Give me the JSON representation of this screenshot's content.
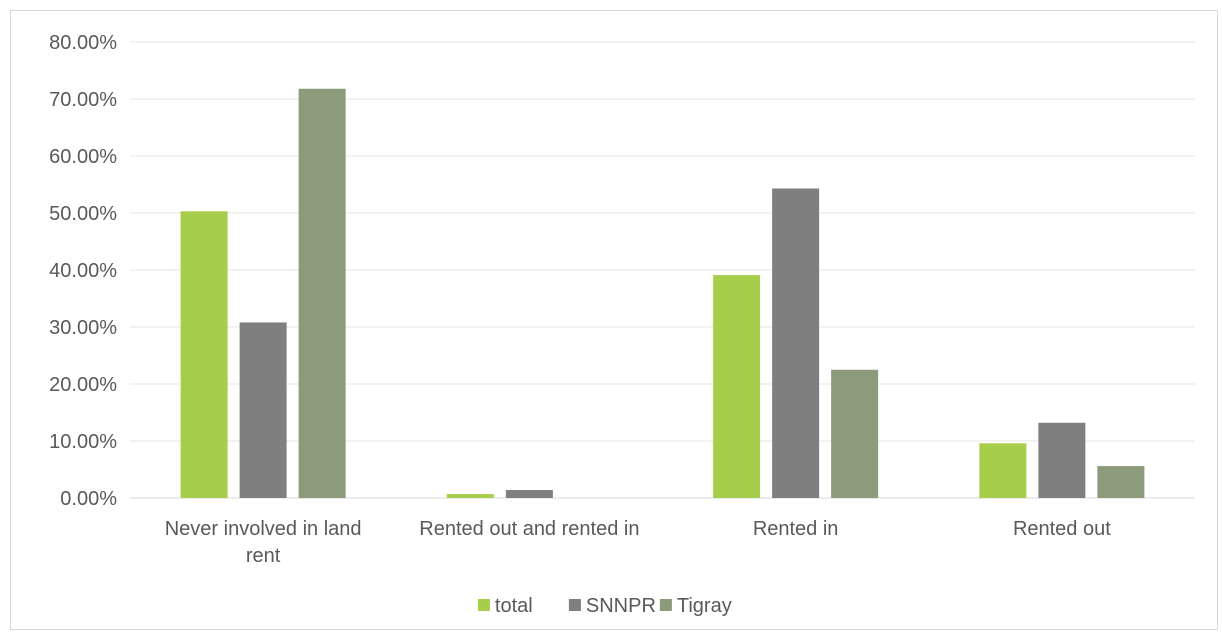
{
  "chart_data": {
    "type": "bar",
    "categories": [
      [
        "Never involved in land",
        "rent"
      ],
      [
        "Rented out and rented in"
      ],
      [
        "Rented in"
      ],
      [
        "Rented out"
      ]
    ],
    "series": [
      {
        "name": "total",
        "color": "#a6ce4a",
        "values": [
          50.3,
          0.7,
          39.1,
          9.6
        ]
      },
      {
        "name": "SNNPR",
        "color": "#7f7f7f",
        "values": [
          30.8,
          1.4,
          54.3,
          13.2
        ]
      },
      {
        "name": "Tigray",
        "color": "#8c9b7a",
        "values": [
          71.8,
          0,
          22.5,
          5.6
        ]
      }
    ],
    "yticks": [
      "0.00%",
      "10.00%",
      "20.00%",
      "30.00%",
      "40.00%",
      "50.00%",
      "60.00%",
      "70.00%",
      "80.00%"
    ],
    "ylim": [
      0,
      80
    ],
    "title": "",
    "xlabel": "",
    "ylabel": "",
    "grid": true,
    "legend_position": "bottom"
  }
}
